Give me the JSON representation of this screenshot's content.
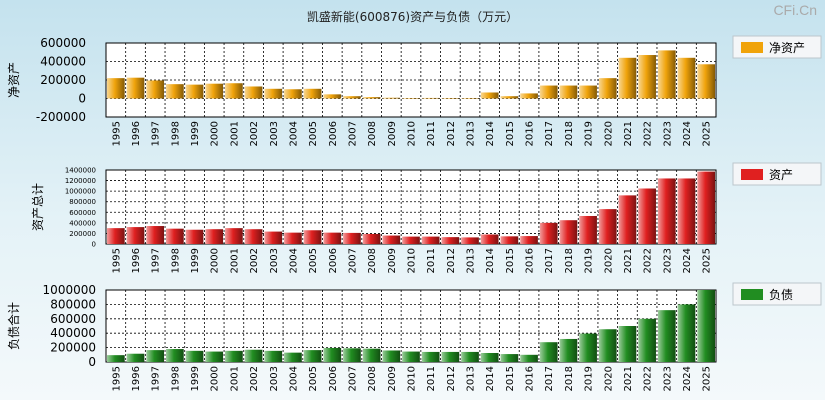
{
  "brand": "CFi.Cn",
  "colors": {
    "net_assets": "#f0a30a",
    "assets": "#e02020",
    "liabilities": "#218d21"
  },
  "chart_data": [
    {
      "type": "bar",
      "title": "凯盛新能(600876)资产与负债（万元）",
      "ylabel": "净资产",
      "ylim": [
        -200000,
        600000
      ],
      "yticks": [
        "600000",
        "400000",
        "200000",
        "0",
        "-200000"
      ],
      "ytick_values": [
        600000,
        400000,
        200000,
        0,
        -200000
      ],
      "categories": [
        "1995",
        "1996",
        "1997",
        "1998",
        "1999",
        "2000",
        "2001",
        "2002",
        "2003",
        "2004",
        "2005",
        "2006",
        "2007",
        "2008",
        "2009",
        "2010",
        "2011",
        "2012",
        "2013",
        "2014",
        "2015",
        "2016",
        "2017",
        "2018",
        "2019",
        "2020",
        "2021",
        "2022",
        "2023",
        "2024",
        "2025"
      ],
      "series": [
        {
          "name": "净资产",
          "values": [
            220000,
            225000,
            195000,
            155000,
            150000,
            160000,
            165000,
            130000,
            105000,
            100000,
            105000,
            45000,
            25000,
            15000,
            8000,
            5000,
            6000,
            4000,
            2000,
            65000,
            25000,
            55000,
            140000,
            140000,
            140000,
            220000,
            440000,
            470000,
            520000,
            440000,
            370000
          ]
        }
      ],
      "legend": "right"
    },
    {
      "type": "bar",
      "ylabel": "资产总计",
      "ylim": [
        0,
        1400000
      ],
      "yticks": [
        "1400000",
        "1200000",
        "1000000",
        "800000",
        "600000",
        "400000",
        "200000",
        "0"
      ],
      "ytick_values": [
        1400000,
        1200000,
        1000000,
        800000,
        600000,
        400000,
        200000,
        0
      ],
      "categories": [
        "1995",
        "1996",
        "1997",
        "1998",
        "1999",
        "2000",
        "2001",
        "2002",
        "2003",
        "2004",
        "2005",
        "2006",
        "2007",
        "2008",
        "2009",
        "2010",
        "2011",
        "2012",
        "2013",
        "2014",
        "2015",
        "2016",
        "2017",
        "2018",
        "2019",
        "2020",
        "2021",
        "2022",
        "2023",
        "2024",
        "2025"
      ],
      "series": [
        {
          "name": "资产",
          "values": [
            300000,
            320000,
            340000,
            290000,
            270000,
            280000,
            300000,
            280000,
            235000,
            215000,
            260000,
            215000,
            210000,
            190000,
            160000,
            140000,
            140000,
            130000,
            125000,
            180000,
            145000,
            150000,
            400000,
            450000,
            530000,
            660000,
            920000,
            1050000,
            1240000,
            1240000,
            1370000
          ]
        }
      ],
      "legend": "right"
    },
    {
      "type": "bar",
      "ylabel": "负债合计",
      "ylim": [
        0,
        1000000
      ],
      "yticks": [
        "1000000",
        "800000",
        "600000",
        "400000",
        "200000",
        "0"
      ],
      "ytick_values": [
        1000000,
        800000,
        600000,
        400000,
        200000,
        0
      ],
      "categories": [
        "1995",
        "1996",
        "1997",
        "1998",
        "1999",
        "2000",
        "2001",
        "2002",
        "2003",
        "2004",
        "2005",
        "2006",
        "2007",
        "2008",
        "2009",
        "2010",
        "2011",
        "2012",
        "2013",
        "2014",
        "2015",
        "2016",
        "2017",
        "2018",
        "2019",
        "2020",
        "2021",
        "2022",
        "2023",
        "2024",
        "2025"
      ],
      "series": [
        {
          "name": "负债",
          "values": [
            95000,
            115000,
            165000,
            180000,
            155000,
            145000,
            155000,
            170000,
            155000,
            130000,
            165000,
            195000,
            190000,
            185000,
            160000,
            145000,
            140000,
            140000,
            140000,
            125000,
            110000,
            100000,
            275000,
            320000,
            395000,
            455000,
            500000,
            600000,
            720000,
            800000,
            1000000
          ]
        }
      ],
      "legend": "right"
    }
  ]
}
